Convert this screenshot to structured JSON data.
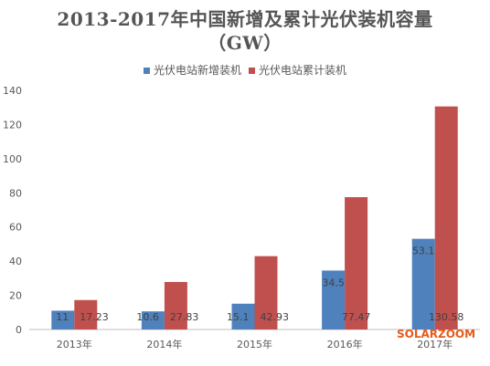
{
  "chart_data": {
    "type": "bar",
    "title": "2013-2017年中国新增及累计光伏装机容量",
    "subtitle": "（GW）",
    "xlabel": "",
    "ylabel": "",
    "categories": [
      "2013年",
      "2014年",
      "2015年",
      "2016年",
      "2017年"
    ],
    "series": [
      {
        "name": "光伏电站新增装机",
        "color": "#4F81BD",
        "values": [
          11,
          10.6,
          15.1,
          34.5,
          53.1
        ],
        "labels": [
          "11",
          "10.6",
          "15.1",
          "34.5",
          "53.1"
        ]
      },
      {
        "name": "光伏电站累计装机",
        "color": "#C0504D",
        "values": [
          17.23,
          27.83,
          42.93,
          77.47,
          130.58
        ],
        "labels": [
          "17.23",
          "27.83",
          "42.93",
          "77.47",
          "130.58"
        ]
      }
    ],
    "ylim": [
      0,
      140
    ],
    "yticks": [
      0,
      20,
      40,
      60,
      80,
      100,
      120,
      140
    ],
    "grid": false,
    "legend_position": "top"
  },
  "watermark": {
    "text": "SOLARZOOM",
    "color": "#E85A1A"
  }
}
